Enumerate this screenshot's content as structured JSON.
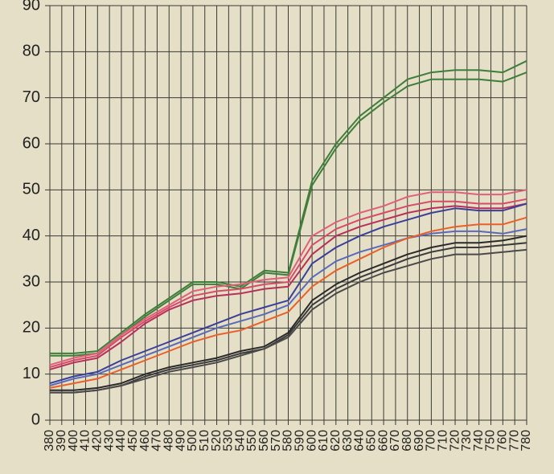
{
  "chart_data": {
    "type": "line",
    "xlim": [
      380,
      780
    ],
    "xticks": [
      380,
      390,
      400,
      410,
      420,
      430,
      440,
      450,
      460,
      470,
      480,
      490,
      500,
      510,
      520,
      530,
      540,
      550,
      560,
      570,
      580,
      590,
      600,
      610,
      620,
      630,
      640,
      650,
      660,
      670,
      680,
      690,
      700,
      710,
      720,
      730,
      740,
      750,
      760,
      770,
      780
    ],
    "ylim": [
      0,
      90
    ],
    "yticks": [
      0,
      10,
      20,
      30,
      40,
      50,
      60,
      70,
      80,
      90
    ],
    "grid": true,
    "x": [
      380,
      400,
      420,
      440,
      460,
      480,
      500,
      520,
      540,
      560,
      580,
      600,
      620,
      640,
      660,
      680,
      700,
      720,
      740,
      760,
      780
    ],
    "series": [
      {
        "color": "#3f7d3a",
        "values": [
          14.5,
          14.5,
          15,
          19,
          23,
          26.5,
          30,
          30,
          29,
          32.5,
          32,
          52,
          60,
          66,
          70,
          74,
          75.5,
          76,
          76,
          75.5,
          78
        ]
      },
      {
        "color": "#3f7d3a",
        "values": [
          14,
          14,
          14.5,
          18.5,
          22.5,
          26,
          29.5,
          29.5,
          28.5,
          32,
          31.5,
          51,
          59,
          65,
          69,
          72.5,
          74,
          74,
          74,
          73.5,
          75.5
        ]
      },
      {
        "color": "#e0607a",
        "values": [
          12,
          13.5,
          14.5,
          18.5,
          22,
          25,
          28,
          29,
          29.5,
          30.5,
          31,
          40,
          43,
          45,
          46.5,
          48.5,
          49.5,
          49.5,
          49,
          49,
          50
        ]
      },
      {
        "color": "#d84a6a",
        "values": [
          11.5,
          13,
          14,
          18,
          21.5,
          24.5,
          27,
          28,
          28.5,
          29.5,
          30,
          38,
          41.5,
          43.5,
          45,
          46.5,
          47.5,
          47.5,
          47,
          47,
          48
        ]
      },
      {
        "color": "#b8305a",
        "values": [
          11,
          12.5,
          13.5,
          17,
          21,
          24,
          26,
          27,
          27.5,
          28.5,
          29,
          36,
          40,
          42,
          43.5,
          45,
          46,
          46.5,
          46,
          46,
          47
        ]
      },
      {
        "color": "#3a3f9a",
        "values": [
          8,
          9.5,
          10.5,
          13,
          15,
          17,
          19,
          21,
          23,
          24.5,
          26,
          34,
          37.5,
          40,
          42,
          43.5,
          45,
          46,
          45.5,
          45.5,
          47
        ]
      },
      {
        "color": "#5a6ab8",
        "values": [
          7.5,
          9,
          10,
          12,
          14,
          16,
          18,
          20,
          21.5,
          23,
          25,
          31,
          34.5,
          36.5,
          38,
          39.5,
          40.5,
          41,
          41,
          40.5,
          41.5
        ]
      },
      {
        "color": "#e8602a",
        "values": [
          7,
          8,
          9,
          11,
          13,
          15,
          17,
          18.5,
          19.5,
          21.5,
          23.5,
          29,
          32.5,
          35,
          37.5,
          39.5,
          41,
          42,
          42.5,
          42.5,
          44
        ]
      },
      {
        "color": "#2a2a2a",
        "values": [
          6.5,
          6.5,
          7,
          8,
          10,
          11.5,
          12.5,
          13.5,
          15,
          16,
          19,
          26,
          29.5,
          32,
          34,
          36,
          37.5,
          38.5,
          38.5,
          39,
          40
        ]
      },
      {
        "color": "#3a3a3a",
        "values": [
          6,
          6,
          6.5,
          7.5,
          9.5,
          11,
          12,
          13,
          14.5,
          15.5,
          18.5,
          25,
          28.5,
          31,
          33,
          35,
          36.5,
          37.5,
          37.5,
          38,
          38.5
        ]
      },
      {
        "color": "#4a4a4a",
        "values": [
          6,
          6,
          6.5,
          7.5,
          9,
          10.5,
          11.5,
          12.5,
          14,
          15.5,
          18,
          24,
          27.5,
          30,
          32,
          33.5,
          35,
          36,
          36,
          36.5,
          37
        ]
      }
    ]
  }
}
